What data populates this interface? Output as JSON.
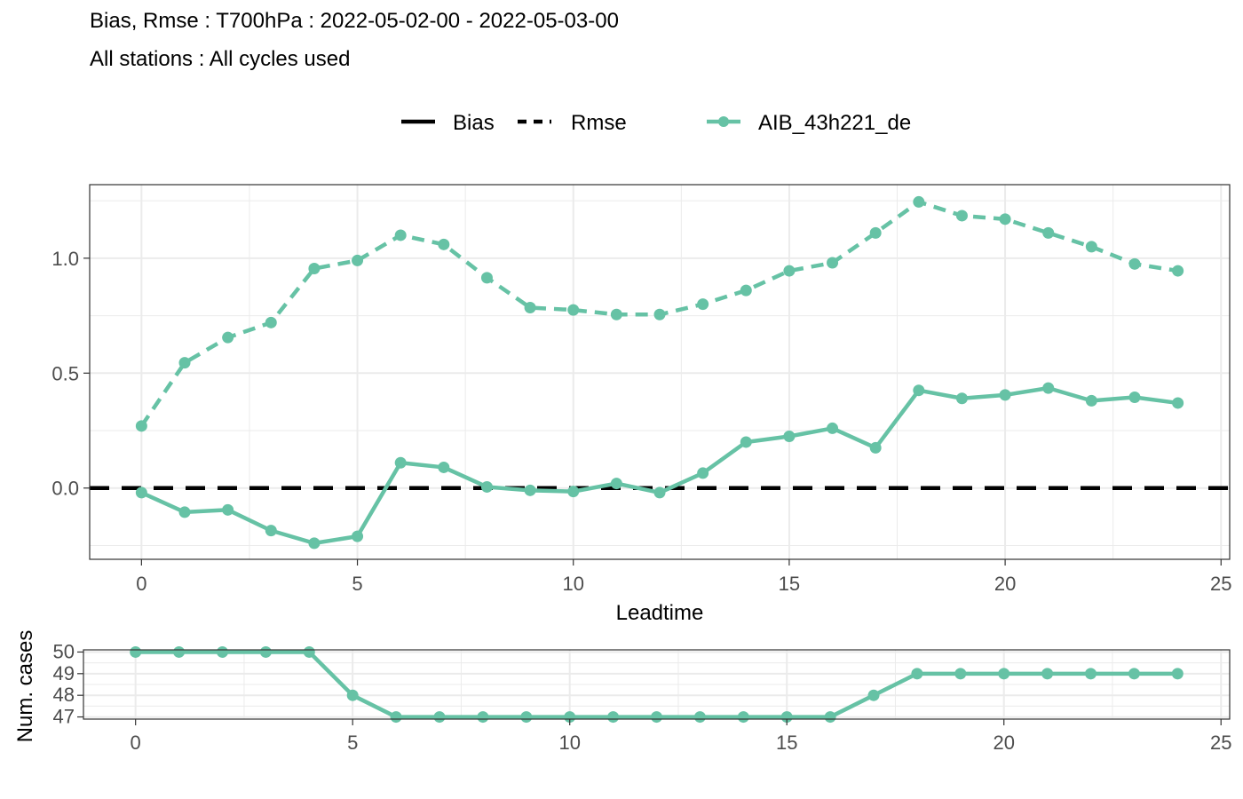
{
  "title": "Bias, Rmse : T700hPa : 2022-05-02-00 - 2022-05-03-00",
  "subtitle": "All stations : All cycles used",
  "legend": {
    "linetype_items": [
      "Bias",
      "Rmse"
    ],
    "model_name": "AIB_43h221_de"
  },
  "colors": {
    "series": "#66c2a5",
    "reference": "#000000",
    "grid": "#ebebeb"
  },
  "chart_data": [
    {
      "type": "line",
      "xlabel": "Leadtime",
      "ylabel": "",
      "xlim": [
        -1.2,
        25.2
      ],
      "ylim": [
        -0.31,
        1.32
      ],
      "xticks": [
        0,
        5,
        10,
        15,
        20,
        25
      ],
      "yticks": [
        0.0,
        0.5,
        1.0
      ],
      "ytick_labels": [
        "0.0",
        "0.5",
        "1.0"
      ],
      "grid": true,
      "legend_position": "top",
      "reference_line": {
        "y": 0,
        "style": "dashed",
        "color": "#000000"
      },
      "x": [
        0,
        1,
        2,
        3,
        4,
        5,
        6,
        7,
        8,
        9,
        10,
        11,
        12,
        13,
        14,
        15,
        16,
        17,
        18,
        19,
        20,
        21,
        22,
        23,
        24
      ],
      "series": [
        {
          "name": "Bias",
          "style": "solid",
          "model": "AIB_43h221_de",
          "values": [
            -0.02,
            -0.105,
            -0.095,
            -0.185,
            -0.24,
            -0.21,
            0.11,
            0.09,
            0.005,
            -0.01,
            -0.015,
            0.02,
            -0.02,
            0.065,
            0.2,
            0.225,
            0.26,
            0.175,
            0.425,
            0.39,
            0.405,
            0.435,
            0.38,
            0.395,
            0.37
          ]
        },
        {
          "name": "Rmse",
          "style": "dashed",
          "model": "AIB_43h221_de",
          "values": [
            0.27,
            0.545,
            0.655,
            0.72,
            0.955,
            0.99,
            1.1,
            1.06,
            0.915,
            0.785,
            0.775,
            0.755,
            0.755,
            0.8,
            0.86,
            0.945,
            0.98,
            1.11,
            1.245,
            1.185,
            1.17,
            1.11,
            1.05,
            0.975,
            0.945
          ]
        }
      ]
    },
    {
      "type": "line",
      "xlabel": "",
      "ylabel": "Num. cases",
      "xlim": [
        -1.2,
        25.2
      ],
      "ylim": [
        46.9,
        50.1
      ],
      "xticks": [
        0,
        5,
        10,
        15,
        20,
        25
      ],
      "yticks": [
        47,
        48,
        49,
        50
      ],
      "grid": true,
      "x": [
        0,
        1,
        2,
        3,
        4,
        5,
        6,
        7,
        8,
        9,
        10,
        11,
        12,
        13,
        14,
        15,
        16,
        17,
        18,
        19,
        20,
        21,
        22,
        23,
        24
      ],
      "series": [
        {
          "model": "AIB_43h221_de",
          "values": [
            50,
            50,
            50,
            50,
            50,
            48,
            47,
            47,
            47,
            47,
            47,
            47,
            47,
            47,
            47,
            47,
            47,
            48,
            49,
            49,
            49,
            49,
            49,
            49,
            49
          ]
        }
      ]
    }
  ]
}
